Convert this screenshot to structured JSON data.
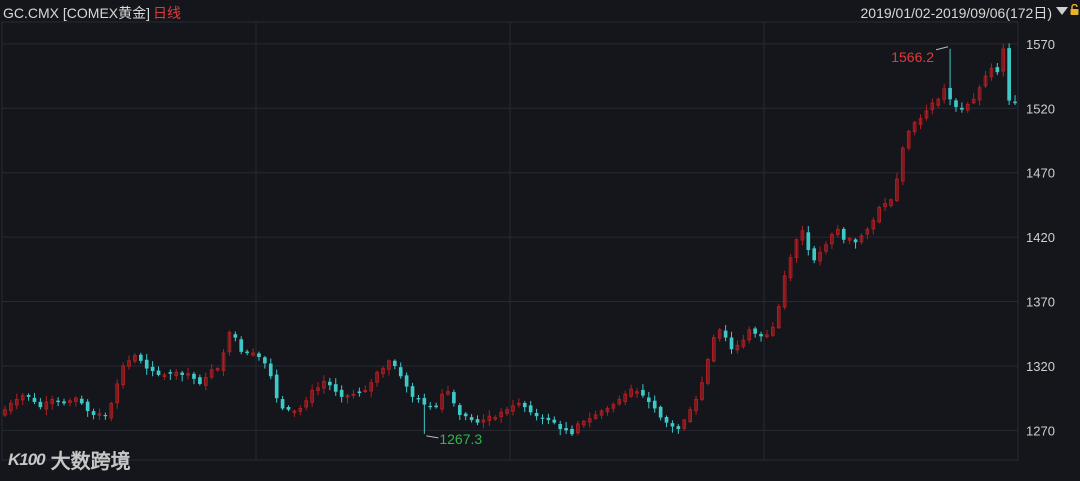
{
  "header": {
    "symbol": "GC.CMX [COMEX黄金]",
    "period": "日线",
    "range": "2019/01/02-2019/09/06(172日)",
    "icons": [
      "chevron-down-icon",
      "lock-icon"
    ]
  },
  "watermark": {
    "logo": "K100",
    "text": "大数跨境"
  },
  "colors": {
    "background": "#14161b",
    "grid": "#262a31",
    "up": "#b01e22",
    "down": "#3fc8c8",
    "high_label": "#e03a3a",
    "low_label": "#2fb64a",
    "axis_text": "#cfcfcf"
  },
  "chart_data": {
    "type": "candlestick",
    "instrument": "GC.CMX",
    "y_ticks": [
      1270,
      1320,
      1370,
      1420,
      1470,
      1520,
      1570
    ],
    "ylim": [
      1247,
      1587
    ],
    "max_label": "1566.2",
    "min_label": "1267.3",
    "max_index": 160,
    "min_index": 71,
    "x_range": "2019/01/02-2019/09/06",
    "count": 172,
    "closes": [
      1286,
      1291,
      1294,
      1297,
      1296,
      1292,
      1288,
      1292,
      1294,
      1292,
      1291,
      1293,
      1295,
      1291,
      1285,
      1282,
      1283,
      1281,
      1291,
      1306,
      1320,
      1324,
      1328,
      1324,
      1318,
      1316,
      1313,
      1313,
      1314,
      1315,
      1313,
      1314,
      1310,
      1306,
      1311,
      1317,
      1318,
      1330,
      1346,
      1342,
      1331,
      1330,
      1330,
      1327,
      1322,
      1312,
      1295,
      1287,
      1286,
      1285,
      1287,
      1293,
      1301,
      1303,
      1308,
      1305,
      1300,
      1296,
      1297,
      1298,
      1299,
      1301,
      1307,
      1315,
      1318,
      1324,
      1320,
      1312,
      1304,
      1296,
      1294,
      1290,
      1288,
      1288,
      1298,
      1300,
      1291,
      1282,
      1281,
      1278,
      1276,
      1278,
      1281,
      1280,
      1284,
      1286,
      1289,
      1291,
      1288,
      1284,
      1281,
      1279,
      1278,
      1276,
      1271,
      1270,
      1267,
      1275,
      1277,
      1279,
      1282,
      1285,
      1287,
      1290,
      1294,
      1298,
      1302,
      1300,
      1297,
      1292,
      1287,
      1280,
      1276,
      1273,
      1271,
      1278,
      1286,
      1294,
      1307,
      1325,
      1342,
      1348,
      1342,
      1333,
      1336,
      1340,
      1348,
      1345,
      1343,
      1344,
      1350,
      1366,
      1390,
      1404,
      1418,
      1425,
      1410,
      1402,
      1408,
      1414,
      1422,
      1426,
      1418,
      1419,
      1416,
      1421,
      1426,
      1433,
      1443,
      1446,
      1449,
      1465,
      1489,
      1502,
      1509,
      1512,
      1518,
      1524,
      1527,
      1535,
      1527,
      1521,
      1519,
      1523,
      1527,
      1536,
      1545,
      1551,
      1548,
      1566,
      1526,
      1524
    ]
  }
}
